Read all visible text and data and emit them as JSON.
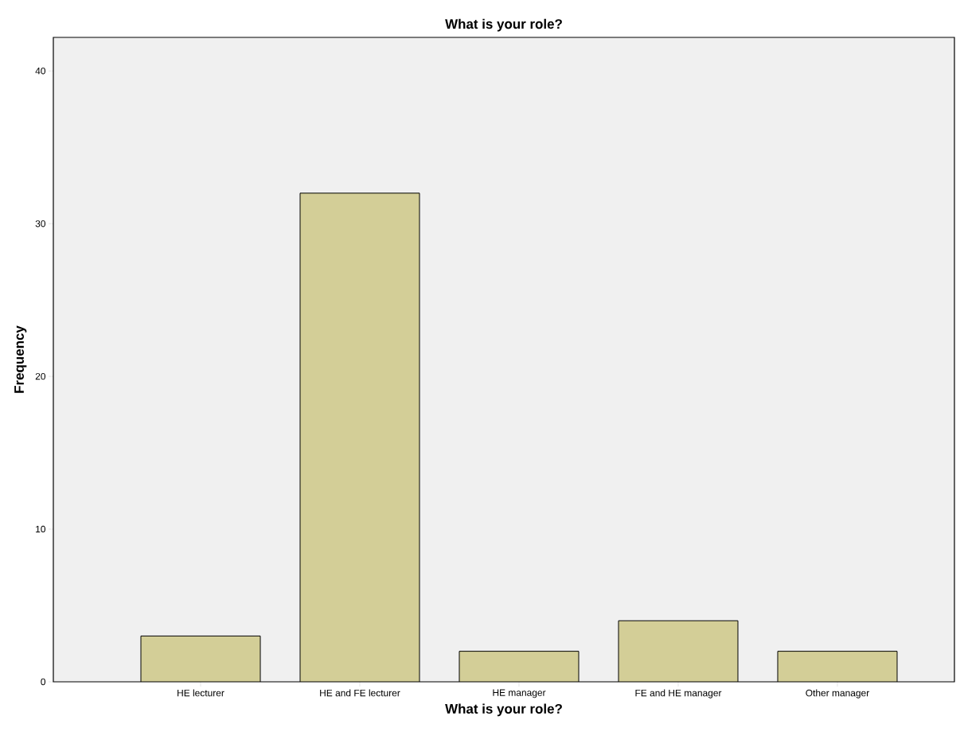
{
  "chart_data": {
    "type": "bar",
    "title": "What is your role?",
    "xlabel": "What is your role?",
    "ylabel": "Frequency",
    "categories": [
      "HE lecturer",
      "HE and FE lecturer",
      "HE manager",
      "FE and HE manager",
      "Other manager"
    ],
    "values": [
      3,
      32,
      2,
      4,
      2
    ],
    "color": "#d3ce97",
    "ylim": [
      0,
      42.2
    ],
    "yticks": [
      0,
      10,
      20,
      30,
      40
    ]
  }
}
